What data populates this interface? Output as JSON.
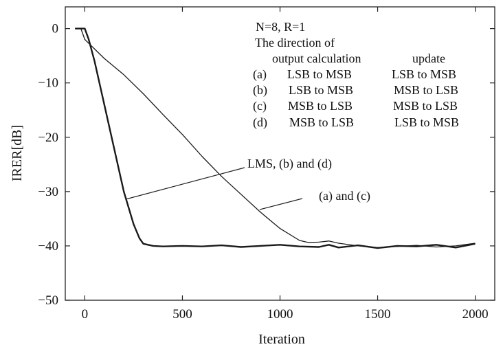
{
  "chart_data": {
    "type": "line",
    "xlabel": "Iteration",
    "ylabel": "IRER[dB]",
    "xlim": [
      -100,
      2100
    ],
    "ylim": [
      -50,
      4
    ],
    "x_ticks": [
      0,
      500,
      1000,
      1500,
      2000
    ],
    "y_ticks": [
      0,
      -10,
      -20,
      -30,
      -40,
      -50
    ],
    "x_tick_labels": [
      "0",
      "500",
      "1000",
      "1500",
      "2000"
    ],
    "y_tick_labels": [
      "0",
      "−10",
      "−20",
      "−30",
      "−40",
      "−50"
    ],
    "grid": false,
    "annotations": {
      "params": "N=8, R=1",
      "direction_title": "The direction of",
      "header": {
        "col1": "output calculation",
        "col2": "update"
      },
      "rows": [
        {
          "label": "(a)",
          "output": "LSB to MSB",
          "update": "LSB to MSB"
        },
        {
          "label": "(b)",
          "output": "LSB to MSB",
          "update": "MSB to LSB"
        },
        {
          "label": "(c)",
          "output": "MSB to LSB",
          "update": "MSB to LSB"
        },
        {
          "label": "(d)",
          "output": "MSB to LSB",
          "update": "LSB to MSB"
        }
      ],
      "callout_fast": "LMS, (b) and (d)",
      "callout_slow": "(a) and (c)"
    },
    "series": [
      {
        "x": [
          -50,
          -20,
          0,
          20,
          50,
          100,
          150,
          200,
          250,
          280,
          300,
          350,
          400,
          500,
          600,
          700,
          800,
          900,
          1000,
          1100,
          1200,
          1250,
          1300,
          1400,
          1500,
          1600,
          1700,
          1800,
          1900,
          2000
        ],
        "values": [
          0,
          0,
          0,
          -2,
          -6,
          -14,
          -22,
          -30,
          -36,
          -38.6,
          -39.6,
          -40,
          -40.1,
          -40,
          -40.1,
          -39.9,
          -40.2,
          -40,
          -39.8,
          -40.1,
          -40.2,
          -39.8,
          -40.3,
          -39.9,
          -40.4,
          -40,
          -40.1,
          -39.8,
          -40.3,
          -39.6
        ]
      },
      {
        "x": [
          -50,
          -20,
          0,
          100,
          200,
          300,
          400,
          500,
          600,
          700,
          800,
          900,
          1000,
          1100,
          1150,
          1200,
          1250,
          1300,
          1400,
          1500,
          1600,
          1700,
          1800,
          1900,
          2000
        ],
        "values": [
          0,
          0,
          -2,
          -5.5,
          -8.5,
          -12,
          -15.8,
          -19.5,
          -23.5,
          -27.2,
          -30.5,
          -33.8,
          -36.8,
          -39,
          -39.4,
          -39.3,
          -39.1,
          -39.5,
          -40,
          -40.3,
          -40.1,
          -39.9,
          -40.2,
          -40,
          -39.5
        ]
      }
    ]
  }
}
